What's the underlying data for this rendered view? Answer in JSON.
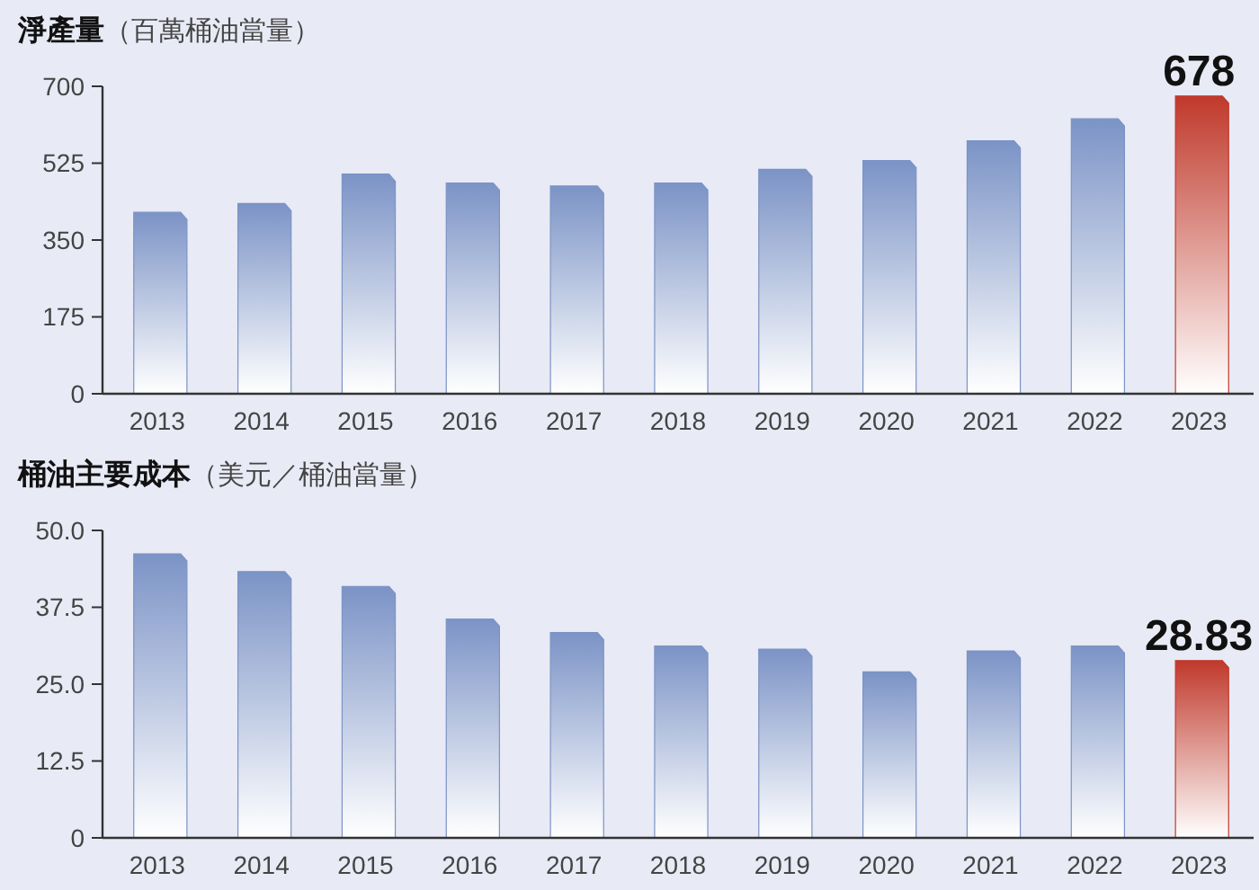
{
  "chart_data": [
    {
      "type": "bar",
      "title": "淨產量",
      "subtitle": "（百萬桶油當量）",
      "categories": [
        "2013",
        "2014",
        "2015",
        "2016",
        "2017",
        "2018",
        "2019",
        "2020",
        "2021",
        "2022",
        "2023"
      ],
      "values": [
        413,
        433,
        500,
        480,
        473,
        480,
        511,
        531,
        576,
        626,
        678
      ],
      "colors": [
        "#7b93c6",
        "#7b93c6",
        "#7b93c6",
        "#7b93c6",
        "#7b93c6",
        "#7b93c6",
        "#7b93c6",
        "#7b93c6",
        "#7b93c6",
        "#7b93c6",
        "#c0392b"
      ],
      "value_labels": [
        null,
        null,
        null,
        null,
        null,
        null,
        null,
        null,
        null,
        null,
        "678"
      ],
      "ylim": [
        0,
        700
      ],
      "yticks": [
        0,
        175,
        350,
        525,
        700
      ],
      "grid": false
    },
    {
      "type": "bar",
      "title": "桶油主要成本",
      "subtitle": "（美元／桶油當量）",
      "categories": [
        "2013",
        "2014",
        "2015",
        "2016",
        "2017",
        "2018",
        "2019",
        "2020",
        "2021",
        "2022",
        "2023"
      ],
      "values": [
        46.2,
        43.3,
        40.9,
        35.6,
        33.4,
        31.2,
        30.7,
        27.0,
        30.4,
        31.2,
        28.83
      ],
      "colors": [
        "#7b93c6",
        "#7b93c6",
        "#7b93c6",
        "#7b93c6",
        "#7b93c6",
        "#7b93c6",
        "#7b93c6",
        "#7b93c6",
        "#7b93c6",
        "#7b93c6",
        "#c0392b"
      ],
      "value_labels": [
        null,
        null,
        null,
        null,
        null,
        null,
        null,
        null,
        null,
        null,
        "28.83"
      ],
      "ylim": [
        0,
        50
      ],
      "yticks": [
        {
          "value": 0,
          "label": "0"
        },
        {
          "value": 12.5,
          "label": "12.5"
        },
        {
          "value": 25,
          "label": "25.0"
        },
        {
          "value": 37.5,
          "label": "37.5"
        },
        {
          "value": 50,
          "label": "50.0"
        }
      ],
      "grid": false
    }
  ]
}
